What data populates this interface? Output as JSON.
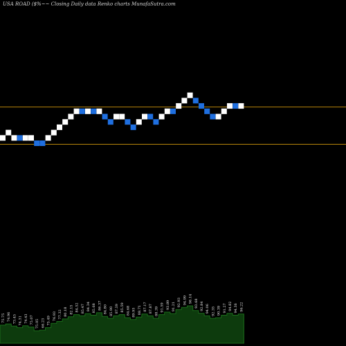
{
  "title": "USA ROAD ($%~~  Closing Daily data  Renko  charts MunafaSutra.com",
  "colors": {
    "background": "#000000",
    "up_brick": "#ffffff",
    "down_brick": "#1f6fe0",
    "level_line": "#b8860b",
    "volume_fill": "#0d3b0d",
    "volume_line": "#1a6b1a",
    "label": "#e8e8e8"
  },
  "chart_data": {
    "type": "renko",
    "title": "USA ROAD ($%~~  Closing Daily data  Renko  charts MunafaSutra.com",
    "brick_size": 1,
    "bricks": [
      {
        "dir": "up",
        "level": 6
      },
      {
        "dir": "up",
        "level": 7
      },
      {
        "dir": "up",
        "level": 6
      },
      {
        "dir": "down",
        "level": 6
      },
      {
        "dir": "up",
        "level": 6
      },
      {
        "dir": "up",
        "level": 6
      },
      {
        "dir": "down",
        "level": 5
      },
      {
        "dir": "down",
        "level": 5
      },
      {
        "dir": "up",
        "level": 6
      },
      {
        "dir": "up",
        "level": 7
      },
      {
        "dir": "up",
        "level": 8
      },
      {
        "dir": "up",
        "level": 9
      },
      {
        "dir": "up",
        "level": 10
      },
      {
        "dir": "up",
        "level": 11
      },
      {
        "dir": "down",
        "level": 11
      },
      {
        "dir": "up",
        "level": 11
      },
      {
        "dir": "down",
        "level": 11
      },
      {
        "dir": "up",
        "level": 11
      },
      {
        "dir": "down",
        "level": 10
      },
      {
        "dir": "down",
        "level": 9
      },
      {
        "dir": "up",
        "level": 10
      },
      {
        "dir": "up",
        "level": 10
      },
      {
        "dir": "down",
        "level": 9
      },
      {
        "dir": "down",
        "level": 8
      },
      {
        "dir": "up",
        "level": 9
      },
      {
        "dir": "up",
        "level": 10
      },
      {
        "dir": "down",
        "level": 10
      },
      {
        "dir": "down",
        "level": 9
      },
      {
        "dir": "up",
        "level": 10
      },
      {
        "dir": "up",
        "level": 11
      },
      {
        "dir": "down",
        "level": 11
      },
      {
        "dir": "up",
        "level": 12
      },
      {
        "dir": "up",
        "level": 13
      },
      {
        "dir": "up",
        "level": 14
      },
      {
        "dir": "down",
        "level": 13
      },
      {
        "dir": "down",
        "level": 12
      },
      {
        "dir": "down",
        "level": 11
      },
      {
        "dir": "down",
        "level": 10
      },
      {
        "dir": "up",
        "level": 10
      },
      {
        "dir": "up",
        "level": 11
      },
      {
        "dir": "up",
        "level": 12
      },
      {
        "dir": "down",
        "level": 12
      },
      {
        "dir": "up",
        "level": 12
      }
    ],
    "reference_lines": [
      {
        "level": 11.8
      },
      {
        "level": 4.8
      }
    ],
    "volume": [
      58,
      62,
      55,
      50,
      56,
      52,
      40,
      42,
      50,
      64,
      70,
      78,
      85,
      92,
      88,
      95,
      90,
      98,
      86,
      80,
      88,
      92,
      82,
      76,
      84,
      94,
      88,
      80,
      92,
      100,
      95,
      108,
      115,
      120,
      105,
      96,
      88,
      80,
      82,
      90,
      96,
      90,
      94
    ],
    "volume_labels": [
      "75.75",
      "74.96",
      "73.45",
      "74.31",
      "74.43",
      "75.07",
      "75.05",
      "66.23",
      "75.49",
      "76.93",
      "77.32",
      "80.18",
      "82.15",
      "84.52",
      "85.47",
      "84.34",
      "85.68",
      "86.37",
      "84.80",
      "85.90",
      "87.39",
      "85.59",
      "84.68",
      "89.95",
      "88.71",
      "87.17",
      "87.87",
      "88.39",
      "91.59",
      "93.89",
      "91.21",
      "92.93",
      "94.99",
      "96.14",
      "93.68",
      "92.84",
      "94.06",
      "92.35",
      "90.39",
      "91.27",
      "94.82",
      "94.36",
      "96.22"
    ]
  }
}
